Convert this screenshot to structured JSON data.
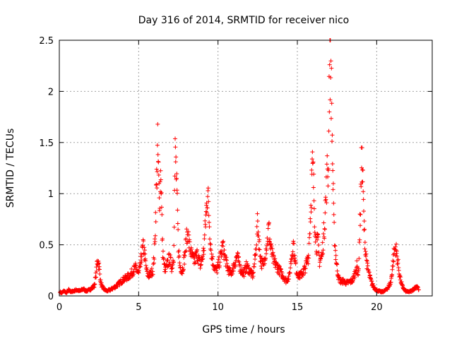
{
  "chart_data": {
    "type": "scatter",
    "title": "Day 316 of 2014, SRMTID for receiver nico",
    "xlabel": "GPS time / hours",
    "ylabel": "SRMTID / TECUs",
    "xlim": [
      0,
      23.5
    ],
    "ylim": [
      0,
      2.5
    ],
    "xticks": [
      0,
      5,
      10,
      15,
      20
    ],
    "xtick_labels": [
      "0",
      "5",
      "10",
      "15",
      "20"
    ],
    "yticks": [
      0,
      0.5,
      1,
      1.5,
      2,
      2.5
    ],
    "ytick_labels": [
      "0",
      "0.5",
      "1",
      "1.5",
      "2",
      "2.5"
    ],
    "grid": true,
    "marker": "+",
    "color": "#ff0000",
    "baseline_level": 0.18,
    "points": [
      [
        0.05,
        0.04
      ],
      [
        0.15,
        0.03
      ],
      [
        0.3,
        0.05
      ],
      [
        0.45,
        0.03
      ],
      [
        0.6,
        0.06
      ],
      [
        0.75,
        0.04
      ],
      [
        0.9,
        0.05
      ],
      [
        1.1,
        0.06
      ],
      [
        1.3,
        0.05
      ],
      [
        1.5,
        0.07
      ],
      [
        1.7,
        0.05
      ],
      [
        1.9,
        0.06
      ],
      [
        2.05,
        0.08
      ],
      [
        2.2,
        0.1
      ],
      [
        2.3,
        0.2
      ],
      [
        2.35,
        0.28
      ],
      [
        2.4,
        0.33
      ],
      [
        2.45,
        0.36
      ],
      [
        2.5,
        0.3
      ],
      [
        2.55,
        0.22
      ],
      [
        2.6,
        0.14
      ],
      [
        2.7,
        0.09
      ],
      [
        2.8,
        0.07
      ],
      [
        3.0,
        0.05
      ],
      [
        3.2,
        0.06
      ],
      [
        3.4,
        0.08
      ],
      [
        3.6,
        0.1
      ],
      [
        3.8,
        0.13
      ],
      [
        4.0,
        0.16
      ],
      [
        4.2,
        0.18
      ],
      [
        4.4,
        0.2
      ],
      [
        4.6,
        0.24
      ],
      [
        4.8,
        0.28
      ],
      [
        5.0,
        0.22
      ],
      [
        5.1,
        0.3
      ],
      [
        5.2,
        0.42
      ],
      [
        5.3,
        0.5
      ],
      [
        5.4,
        0.38
      ],
      [
        5.5,
        0.25
      ],
      [
        5.6,
        0.2
      ],
      [
        5.75,
        0.22
      ],
      [
        5.9,
        0.26
      ],
      [
        6.0,
        0.45
      ],
      [
        6.05,
        0.7
      ],
      [
        6.1,
        1.0
      ],
      [
        6.15,
        1.25
      ],
      [
        6.2,
        1.48
      ],
      [
        6.25,
        1.22
      ],
      [
        6.3,
        0.95
      ],
      [
        6.35,
        1.1
      ],
      [
        6.4,
        1.28
      ],
      [
        6.45,
        0.85
      ],
      [
        6.5,
        0.5
      ],
      [
        6.6,
        0.3
      ],
      [
        6.7,
        0.25
      ],
      [
        6.8,
        0.32
      ],
      [
        6.95,
        0.38
      ],
      [
        7.1,
        0.28
      ],
      [
        7.2,
        0.4
      ],
      [
        7.3,
        1.42
      ],
      [
        7.35,
        1.3
      ],
      [
        7.4,
        1.05
      ],
      [
        7.45,
        0.8
      ],
      [
        7.5,
        0.5
      ],
      [
        7.6,
        0.3
      ],
      [
        7.75,
        0.25
      ],
      [
        7.9,
        0.4
      ],
      [
        8.0,
        0.55
      ],
      [
        8.1,
        0.65
      ],
      [
        8.2,
        0.5
      ],
      [
        8.35,
        0.4
      ],
      [
        8.5,
        0.35
      ],
      [
        8.7,
        0.42
      ],
      [
        8.9,
        0.3
      ],
      [
        9.1,
        0.45
      ],
      [
        9.2,
        0.7
      ],
      [
        9.3,
        0.95
      ],
      [
        9.35,
        1.06
      ],
      [
        9.4,
        0.9
      ],
      [
        9.5,
        0.6
      ],
      [
        9.6,
        0.4
      ],
      [
        9.75,
        0.3
      ],
      [
        9.9,
        0.25
      ],
      [
        10.1,
        0.35
      ],
      [
        10.3,
        0.5
      ],
      [
        10.45,
        0.38
      ],
      [
        10.6,
        0.28
      ],
      [
        10.8,
        0.22
      ],
      [
        11.0,
        0.3
      ],
      [
        11.2,
        0.4
      ],
      [
        11.4,
        0.28
      ],
      [
        11.6,
        0.22
      ],
      [
        11.8,
        0.3
      ],
      [
        12.0,
        0.25
      ],
      [
        12.2,
        0.2
      ],
      [
        12.35,
        0.4
      ],
      [
        12.45,
        0.62
      ],
      [
        12.5,
        0.74
      ],
      [
        12.55,
        0.6
      ],
      [
        12.7,
        0.35
      ],
      [
        12.85,
        0.3
      ],
      [
        13.0,
        0.45
      ],
      [
        13.1,
        0.55
      ],
      [
        13.2,
        0.68
      ],
      [
        13.3,
        0.5
      ],
      [
        13.5,
        0.35
      ],
      [
        13.7,
        0.3
      ],
      [
        13.9,
        0.25
      ],
      [
        14.1,
        0.2
      ],
      [
        14.3,
        0.15
      ],
      [
        14.5,
        0.2
      ],
      [
        14.6,
        0.35
      ],
      [
        14.7,
        0.48
      ],
      [
        14.75,
        0.52
      ],
      [
        14.8,
        0.42
      ],
      [
        14.95,
        0.25
      ],
      [
        15.1,
        0.2
      ],
      [
        15.3,
        0.22
      ],
      [
        15.5,
        0.28
      ],
      [
        15.7,
        0.4
      ],
      [
        15.85,
        0.9
      ],
      [
        15.9,
        1.15
      ],
      [
        15.95,
        1.28
      ],
      [
        16.0,
        1.2
      ],
      [
        16.05,
        1.0
      ],
      [
        16.1,
        0.75
      ],
      [
        16.2,
        0.5
      ],
      [
        16.3,
        0.55
      ],
      [
        16.4,
        0.35
      ],
      [
        16.55,
        0.4
      ],
      [
        16.7,
        0.7
      ],
      [
        16.8,
        1.0
      ],
      [
        16.9,
        1.3
      ],
      [
        16.95,
        1.2
      ],
      [
        17.0,
        2.08
      ],
      [
        17.05,
        2.36
      ],
      [
        17.1,
        2.41
      ],
      [
        17.15,
        2.0
      ],
      [
        17.2,
        1.55
      ],
      [
        17.25,
        1.1
      ],
      [
        17.3,
        0.7
      ],
      [
        17.4,
        0.45
      ],
      [
        17.5,
        0.28
      ],
      [
        17.6,
        0.18
      ],
      [
        17.75,
        0.14
      ],
      [
        17.9,
        0.15
      ],
      [
        18.1,
        0.13
      ],
      [
        18.3,
        0.14
      ],
      [
        18.5,
        0.16
      ],
      [
        18.65,
        0.24
      ],
      [
        18.75,
        0.3
      ],
      [
        18.85,
        0.22
      ],
      [
        19.0,
        1.0
      ],
      [
        19.05,
        1.4
      ],
      [
        19.1,
        1.3
      ],
      [
        19.15,
        1.0
      ],
      [
        19.2,
        0.7
      ],
      [
        19.3,
        0.45
      ],
      [
        19.4,
        0.3
      ],
      [
        19.55,
        0.2
      ],
      [
        19.7,
        0.12
      ],
      [
        19.9,
        0.07
      ],
      [
        20.1,
        0.05
      ],
      [
        20.3,
        0.04
      ],
      [
        20.5,
        0.05
      ],
      [
        20.7,
        0.08
      ],
      [
        20.9,
        0.14
      ],
      [
        21.0,
        0.3
      ],
      [
        21.1,
        0.44
      ],
      [
        21.2,
        0.49
      ],
      [
        21.3,
        0.38
      ],
      [
        21.45,
        0.2
      ],
      [
        21.6,
        0.1
      ],
      [
        21.8,
        0.05
      ],
      [
        22.0,
        0.04
      ],
      [
        22.2,
        0.05
      ],
      [
        22.4,
        0.08
      ],
      [
        22.55,
        0.1
      ],
      [
        22.65,
        0.06
      ]
    ]
  }
}
